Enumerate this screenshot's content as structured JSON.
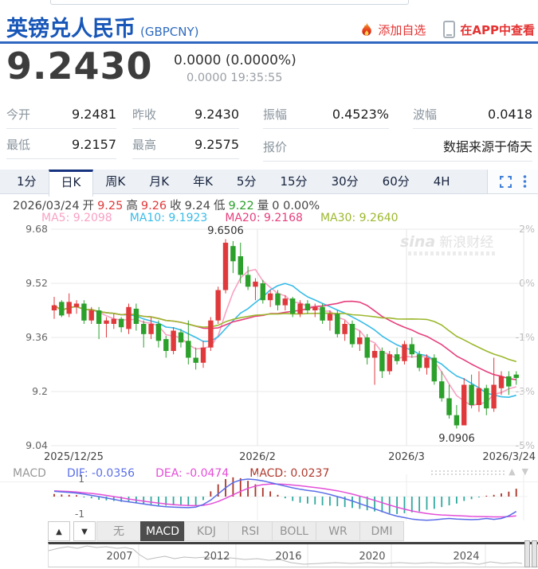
{
  "header": {
    "title": "英镑兑人民币",
    "symbol": "(GBPCNY)",
    "add_watchlist": "添加自选",
    "view_in_app": "在APP中查看"
  },
  "quote": {
    "price": "9.2430",
    "change": "0.0000 (0.0000%)",
    "change_detail": "0.0000 19:35:55"
  },
  "stats": {
    "rows": [
      [
        {
          "label": "今开",
          "value": "9.2481"
        },
        {
          "label": "昨收",
          "value": "9.2430"
        },
        {
          "label": "振幅",
          "value": "0.4523%"
        },
        {
          "label": "波幅",
          "value": "0.0418"
        }
      ],
      [
        {
          "label": "最低",
          "value": "9.2157"
        },
        {
          "label": "最高",
          "value": "9.2575"
        },
        {
          "label": "报价",
          "value": "数据来源于倚天"
        }
      ]
    ]
  },
  "period_tabs": {
    "items": [
      "1分",
      "日K",
      "周K",
      "月K",
      "年K",
      "5分",
      "15分",
      "30分",
      "60分",
      "4H"
    ],
    "active": "日K"
  },
  "ohlc": {
    "parts": [
      {
        "text": "2026/03/24",
        "color": "#444444"
      },
      {
        "text": "开",
        "color": "#444444"
      },
      {
        "text": "9.25",
        "color": "#e0393b"
      },
      {
        "text": "高",
        "color": "#444444"
      },
      {
        "text": "9.26",
        "color": "#e0393b"
      },
      {
        "text": "收",
        "color": "#444444"
      },
      {
        "text": "9.24",
        "color": "#444444"
      },
      {
        "text": "低",
        "color": "#444444"
      },
      {
        "text": "9.22",
        "color": "#2ba02b"
      },
      {
        "text": "量",
        "color": "#444444"
      },
      {
        "text": "0 0.00%",
        "color": "#444444"
      }
    ]
  },
  "ma_legend": [
    {
      "text": "MA5: 9.2098",
      "color": "#f8a1c4"
    },
    {
      "text": "MA10: 9.1923",
      "color": "#39bce8"
    },
    {
      "text": "MA20: 9.2168",
      "color": "#e63f7d"
    },
    {
      "text": "MA30: 9.2640",
      "color": "#9cb82f"
    }
  ],
  "watermark": {
    "brand": "sina",
    "text": "新浪财经"
  },
  "chart_data": {
    "type": "candlestick",
    "title": "英镑兑人民币 (GBPCNY) 日K",
    "ylim": [
      9.04,
      9.68
    ],
    "y_ticks": [
      9.68,
      9.52,
      9.36,
      9.2,
      9.04
    ],
    "y_tick_labels": [
      "9.68",
      "9.52",
      "9.36",
      "9.2",
      "9.04"
    ],
    "y_right_labels": [
      "2%",
      "0%",
      "-1%",
      "-3%",
      "-5%"
    ],
    "x_tick_labels": [
      "2025/12/25",
      "2026/2",
      "2026/3",
      "2026/3/24"
    ],
    "high_annotation": "9.6506",
    "low_annotation": "9.0906",
    "up_color": "#e0393b",
    "down_color": "#2ba02b",
    "ma_colors": {
      "ma5": "#f8a1c4",
      "ma10": "#39bce8",
      "ma20": "#e63f7d",
      "ma30": "#9cb82f"
    },
    "ma_periods": [
      5,
      10,
      20,
      30
    ],
    "candles": [
      [
        9.44,
        9.48,
        9.415,
        9.455
      ],
      [
        9.465,
        9.47,
        9.42,
        9.425
      ],
      [
        9.43,
        9.49,
        9.42,
        9.465
      ],
      [
        9.45,
        9.47,
        9.43,
        9.46
      ],
      [
        9.46,
        9.47,
        9.4,
        9.41
      ],
      [
        9.41,
        9.45,
        9.4,
        9.44
      ],
      [
        9.44,
        9.45,
        9.355,
        9.4
      ],
      [
        9.4,
        9.42,
        9.36,
        9.41
      ],
      [
        9.4,
        9.43,
        9.385,
        9.415
      ],
      [
        9.415,
        9.42,
        9.375,
        9.39
      ],
      [
        9.385,
        9.46,
        9.37,
        9.45
      ],
      [
        9.445,
        9.46,
        9.38,
        9.4
      ],
      [
        9.4,
        9.41,
        9.33,
        9.37
      ],
      [
        9.37,
        9.42,
        9.355,
        9.4
      ],
      [
        9.4,
        9.41,
        9.33,
        9.35
      ],
      [
        9.355,
        9.365,
        9.3,
        9.32
      ],
      [
        9.32,
        9.39,
        9.31,
        9.38
      ],
      [
        9.375,
        9.385,
        9.33,
        9.345
      ],
      [
        9.35,
        9.41,
        9.28,
        9.3
      ],
      [
        9.3,
        9.33,
        9.265,
        9.285
      ],
      [
        9.285,
        9.35,
        9.27,
        9.33
      ],
      [
        9.33,
        9.42,
        9.32,
        9.41
      ],
      [
        9.41,
        9.51,
        9.4,
        9.5
      ],
      [
        9.5,
        9.6506,
        9.49,
        9.64
      ],
      [
        9.63,
        9.645,
        9.55,
        9.585
      ],
      [
        9.6,
        9.64,
        9.52,
        9.545
      ],
      [
        9.545,
        9.57,
        9.5,
        9.51
      ],
      [
        9.51,
        9.535,
        9.47,
        9.525
      ],
      [
        9.52,
        9.53,
        9.46,
        9.47
      ],
      [
        9.47,
        9.5,
        9.45,
        9.49
      ],
      [
        9.49,
        9.5,
        9.44,
        9.455
      ],
      [
        9.455,
        9.485,
        9.44,
        9.475
      ],
      [
        9.475,
        9.48,
        9.42,
        9.43
      ],
      [
        9.43,
        9.47,
        9.42,
        9.46
      ],
      [
        9.46,
        9.47,
        9.43,
        9.44
      ],
      [
        9.44,
        9.46,
        9.42,
        9.45
      ],
      [
        9.45,
        9.46,
        9.4,
        9.41
      ],
      [
        9.41,
        9.44,
        9.38,
        9.43
      ],
      [
        9.43,
        9.44,
        9.36,
        9.37
      ],
      [
        9.37,
        9.41,
        9.35,
        9.4
      ],
      [
        9.4,
        9.41,
        9.33,
        9.34
      ],
      [
        9.34,
        9.38,
        9.32,
        9.36
      ],
      [
        9.36,
        9.37,
        9.28,
        9.3
      ],
      [
        9.3,
        9.34,
        9.22,
        9.32
      ],
      [
        9.32,
        9.33,
        9.24,
        9.26
      ],
      [
        9.26,
        9.32,
        9.25,
        9.31
      ],
      [
        9.31,
        9.33,
        9.28,
        9.29
      ],
      [
        9.29,
        9.35,
        9.28,
        9.34
      ],
      [
        9.34,
        9.36,
        9.3,
        9.31
      ],
      [
        9.31,
        9.32,
        9.26,
        9.27
      ],
      [
        9.27,
        9.31,
        9.25,
        9.3
      ],
      [
        9.3,
        9.31,
        9.22,
        9.23
      ],
      [
        9.23,
        9.26,
        9.17,
        9.18
      ],
      [
        9.18,
        9.22,
        9.12,
        9.13
      ],
      [
        9.13,
        9.16,
        9.0906,
        9.1
      ],
      [
        9.1,
        9.24,
        9.1,
        9.22
      ],
      [
        9.22,
        9.25,
        9.15,
        9.16
      ],
      [
        9.16,
        9.26,
        9.14,
        9.21
      ],
      [
        9.21,
        9.22,
        9.13,
        9.15
      ],
      [
        9.15,
        9.3,
        9.14,
        9.22
      ],
      [
        9.21,
        9.26,
        9.19,
        9.245
      ],
      [
        9.245,
        9.26,
        9.19,
        9.215
      ],
      [
        9.25,
        9.26,
        9.22,
        9.24
      ]
    ]
  },
  "macd": {
    "legend": [
      {
        "text": "MACD",
        "color": "#999999"
      },
      {
        "text": "DIF: -0.0356",
        "color": "#5b6ee8"
      },
      {
        "text": "DEA: -0.0474",
        "color": "#e44ed8"
      },
      {
        "text": "MACD: 0.0237",
        "color": "#b03a2e"
      }
    ],
    "y_top_label": "1",
    "y_bottom_label": "-1",
    "pos_color": "#aa3326",
    "neg_color": "#2fa99e",
    "dif_color": "#5b6ee8",
    "dea_color": "#e44ed8",
    "histogram": [
      0.15,
      0.12,
      0.1,
      0.08,
      -0.05,
      -0.1,
      -0.18,
      -0.22,
      -0.25,
      -0.3,
      -0.32,
      -0.35,
      -0.4,
      -0.45,
      -0.5,
      -0.52,
      -0.5,
      -0.52,
      -0.55,
      -0.5,
      -0.2,
      0.3,
      0.7,
      1.0,
      1.1,
      1.05,
      0.9,
      0.7,
      0.5,
      0.3,
      0.1,
      -0.1,
      -0.25,
      -0.35,
      -0.4,
      -0.45,
      -0.5,
      -0.52,
      -0.55,
      -0.6,
      -0.65,
      -0.7,
      -0.78,
      -0.85,
      -0.9,
      -0.95,
      -1.0,
      -0.95,
      -0.9,
      -0.85,
      -0.75,
      -0.7,
      -0.6,
      -0.5,
      -0.4,
      -0.25,
      -0.15,
      -0.05,
      0.05,
      0.1,
      0.18,
      0.28,
      0.45
    ],
    "dif": [
      0.3,
      0.27,
      0.24,
      0.2,
      0.14,
      0.07,
      0.0,
      -0.08,
      -0.16,
      -0.24,
      -0.3,
      -0.36,
      -0.42,
      -0.48,
      -0.54,
      -0.58,
      -0.6,
      -0.62,
      -0.63,
      -0.6,
      -0.45,
      -0.2,
      0.15,
      0.5,
      0.8,
      0.95,
      1.0,
      0.97,
      0.9,
      0.8,
      0.7,
      0.6,
      0.5,
      0.42,
      0.35,
      0.3,
      0.22,
      0.12,
      0.0,
      -0.12,
      -0.25,
      -0.4,
      -0.55,
      -0.7,
      -0.85,
      -1.0,
      -1.12,
      -1.2,
      -1.28,
      -1.33,
      -1.35,
      -1.33,
      -1.28,
      -1.25,
      -1.28,
      -1.3,
      -1.32,
      -1.3,
      -1.25,
      -1.3,
      -1.25,
      -1.1,
      -0.85
    ],
    "dea": [
      0.33,
      0.31,
      0.29,
      0.26,
      0.22,
      0.18,
      0.13,
      0.07,
      0.0,
      -0.07,
      -0.14,
      -0.2,
      -0.26,
      -0.32,
      -0.37,
      -0.42,
      -0.46,
      -0.49,
      -0.51,
      -0.52,
      -0.5,
      -0.42,
      -0.28,
      -0.1,
      0.1,
      0.3,
      0.47,
      0.6,
      0.68,
      0.72,
      0.72,
      0.7,
      0.66,
      0.62,
      0.57,
      0.52,
      0.47,
      0.4,
      0.33,
      0.24,
      0.14,
      0.03,
      -0.09,
      -0.22,
      -0.35,
      -0.48,
      -0.61,
      -0.72,
      -0.82,
      -0.9,
      -0.97,
      -1.02,
      -1.05,
      -1.07,
      -1.09,
      -1.11,
      -1.13,
      -1.14,
      -1.15,
      -1.16,
      -1.16,
      -1.14,
      -1.1
    ]
  },
  "indicator_tabs": {
    "items": [
      "无",
      "MACD",
      "KDJ",
      "RSI",
      "BOLL",
      "WR",
      "DMI"
    ],
    "active": "MACD"
  },
  "navigator": {
    "years": [
      {
        "label": "2007",
        "x": 89
      },
      {
        "label": "2012",
        "x": 211
      },
      {
        "label": "2016",
        "x": 301
      },
      {
        "label": "2020",
        "x": 406
      },
      {
        "label": "2024",
        "x": 524
      }
    ],
    "sparkline": [
      [
        0,
        8
      ],
      [
        12,
        5
      ],
      [
        24,
        3
      ],
      [
        36,
        5
      ],
      [
        48,
        2
      ],
      [
        60,
        4
      ],
      [
        72,
        3
      ],
      [
        86,
        5
      ],
      [
        96,
        4
      ],
      [
        106,
        6
      ],
      [
        114,
        13
      ],
      [
        124,
        19
      ],
      [
        134,
        17
      ],
      [
        146,
        15
      ],
      [
        158,
        18
      ],
      [
        170,
        16
      ],
      [
        184,
        17
      ],
      [
        198,
        16
      ],
      [
        212,
        18
      ],
      [
        228,
        17
      ],
      [
        246,
        19
      ],
      [
        262,
        18
      ],
      [
        276,
        20
      ],
      [
        290,
        19
      ],
      [
        304,
        23
      ],
      [
        320,
        25
      ],
      [
        340,
        24
      ],
      [
        360,
        23
      ],
      [
        380,
        24
      ],
      [
        400,
        23
      ],
      [
        420,
        24
      ],
      [
        440,
        23
      ],
      [
        460,
        24
      ],
      [
        480,
        23
      ],
      [
        500,
        24
      ],
      [
        520,
        23
      ],
      [
        540,
        25
      ],
      [
        554,
        22
      ],
      [
        570,
        24
      ],
      [
        586,
        23
      ],
      [
        594,
        24
      ]
    ]
  }
}
